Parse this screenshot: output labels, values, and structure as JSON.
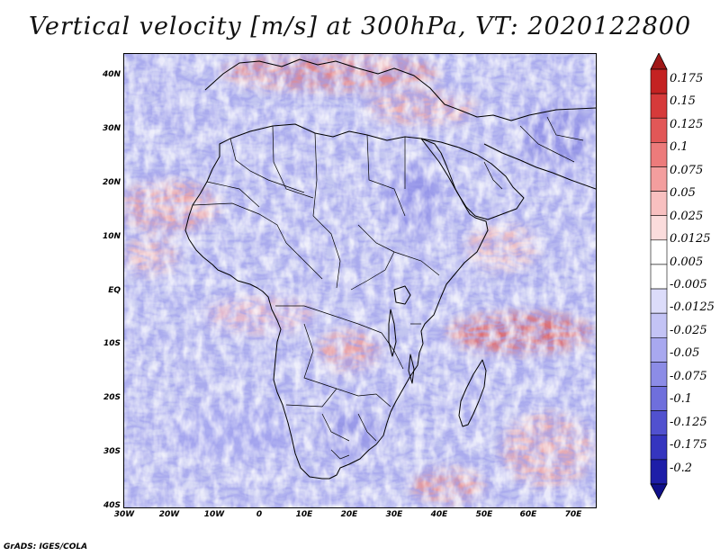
{
  "title": "Vertical velocity [m/s] at 300hPa, VT: 2020122800",
  "credit": "GrADS: IGES/COLA",
  "map": {
    "lat_ticks": [
      "40N",
      "30N",
      "20N",
      "10N",
      "EQ",
      "10S",
      "20S",
      "30S",
      "40S"
    ],
    "lon_ticks": [
      "30W",
      "20W",
      "10W",
      "0",
      "10E",
      "20E",
      "30E",
      "40E",
      "50E",
      "60E",
      "70E"
    ],
    "lat_range": [
      -40,
      45
    ],
    "lon_range": [
      -30,
      75
    ],
    "background_color": "#c9cdf2",
    "coastline_color": "#000000"
  },
  "colorbar": {
    "labels": [
      "0.175",
      "0.15",
      "0.125",
      "0.1",
      "0.075",
      "0.05",
      "0.025",
      "0.0125",
      "0.005",
      "-0.005",
      "-0.0125",
      "-0.025",
      "-0.05",
      "-0.075",
      "-0.1",
      "-0.125",
      "-0.175",
      "-0.2"
    ],
    "colors": [
      "#a01818",
      "#c42222",
      "#d63a3a",
      "#e25757",
      "#ec7b7b",
      "#f39e9e",
      "#f8c0c0",
      "#fbdcdc",
      "#ffffff",
      "#ffffff",
      "#dcdcfa",
      "#c3c3f5",
      "#a8a8ef",
      "#8c8ce6",
      "#6f6fdc",
      "#5151cf",
      "#3535bf",
      "#1e1ea8",
      "#10108a"
    ]
  }
}
